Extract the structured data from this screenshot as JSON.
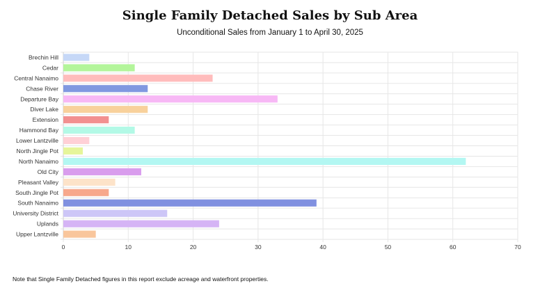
{
  "chart_data": {
    "type": "bar",
    "orientation": "horizontal",
    "title": "Single Family Detached Sales by Sub Area",
    "subtitle": "Unconditional Sales from January 1 to April 30, 2025",
    "note": "Note that Single Family Detached figures in this report exclude acreage and waterfront properties.",
    "xlabel": "",
    "ylabel": "",
    "xlim": [
      0,
      70
    ],
    "xticks": [
      0,
      10,
      20,
      30,
      40,
      50,
      60,
      70
    ],
    "grid": true,
    "categories": [
      "Brechin Hill",
      "Cedar",
      "Central Nanaimo",
      "Chase River",
      "Departure Bay",
      "Diver Lake",
      "Extension",
      "Hammond Bay",
      "Lower Lantzville",
      "North Jingle Pot",
      "North Nanaimo",
      "Old City",
      "Pleasant Valley",
      "South Jingle Pot",
      "South Nanaimo",
      "University District",
      "Uplands",
      "Upper Lantzville"
    ],
    "values": [
      4,
      11,
      23,
      13,
      33,
      13,
      7,
      11,
      4,
      3,
      62,
      12,
      8,
      7,
      39,
      16,
      24,
      5
    ],
    "colors": [
      "#c6d8f7",
      "#b3f59a",
      "#ffbcbc",
      "#8098e0",
      "#f7b8f5",
      "#f8d19c",
      "#f29090",
      "#b3f9e6",
      "#ffd0d6",
      "#e6f59a",
      "#b3f7f2",
      "#d99ded",
      "#fde3c9",
      "#f7a88c",
      "#8090e0",
      "#cdc6f7",
      "#d5b4f5",
      "#f9c69c"
    ]
  }
}
